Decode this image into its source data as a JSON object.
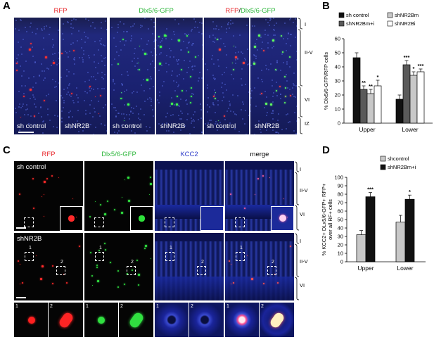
{
  "panels": {
    "A": {
      "label": "A",
      "titles": {
        "rfp": "RFP",
        "dlx": "Dlx5/6-GFP",
        "merge_rfp": "RFP",
        "merge_sep": "/",
        "merge_dlx": "Dlx5/6-GFP"
      },
      "conditions": [
        "sh control",
        "shNR2B"
      ],
      "layers": [
        "I",
        "II-V",
        "VI",
        "IZ"
      ]
    },
    "B": {
      "label": "B"
    },
    "C": {
      "label": "C",
      "titles": {
        "rfp": "RFP",
        "dlx": "Dlx5/6-GFP",
        "kcc2": "KCC2",
        "merge": "merge"
      },
      "conditions": [
        "sh control",
        "shNR2B"
      ],
      "layers": [
        "I",
        "II-V",
        "VI"
      ],
      "box_numbers": [
        "1",
        "2"
      ]
    },
    "D": {
      "label": "D"
    }
  },
  "colors": {
    "red": "#e8262a",
    "green": "#2eb73c",
    "blue": "#2b39c9"
  },
  "chart_data": [
    {
      "type": "bar",
      "panel": "B",
      "ylabel": "% Dlx5/6-GFP/RFP cells",
      "ylim": [
        0,
        60
      ],
      "yticks": [
        0,
        10,
        20,
        30,
        40,
        50,
        60
      ],
      "categories": [
        "Upper",
        "Lower"
      ],
      "legend": [
        "sh control",
        "shNR2Bm+i",
        "shNR2Bm",
        "shNR2Bi"
      ],
      "series": [
        {
          "name": "sh control",
          "color": "#111111",
          "values": [
            46.5,
            17
          ],
          "errors": [
            3.5,
            3
          ],
          "sig": [
            "",
            ""
          ]
        },
        {
          "name": "shNR2Bm+i",
          "color": "#5a5a5a",
          "values": [
            24,
            41.5
          ],
          "errors": [
            2.5,
            3
          ],
          "sig": [
            "**",
            "***"
          ]
        },
        {
          "name": "shNR2Bm",
          "color": "#c8c8c8",
          "values": [
            21,
            34
          ],
          "errors": [
            3,
            2.5
          ],
          "sig": [
            "**",
            "*"
          ]
        },
        {
          "name": "shNR2Bi",
          "color": "#ffffff",
          "values": [
            26.5,
            36.5
          ],
          "errors": [
            4,
            2
          ],
          "sig": [
            "*",
            "***"
          ]
        }
      ]
    },
    {
      "type": "bar",
      "panel": "D",
      "ylabel_lines": [
        "% KCC2+ DLx5/6-GFP+ RFP+",
        "over all RF+ cells"
      ],
      "ylim": [
        0,
        100
      ],
      "yticks": [
        0,
        10,
        20,
        30,
        40,
        50,
        60,
        70,
        80,
        90,
        100
      ],
      "categories": [
        "Upper",
        "Lower"
      ],
      "legend": [
        "shcontrol",
        "shNR2Bm+i"
      ],
      "series": [
        {
          "name": "shcontrol",
          "color": "#c8c8c8",
          "values": [
            32,
            47
          ],
          "errors": [
            5,
            8
          ],
          "sig": [
            "",
            ""
          ]
        },
        {
          "name": "shNR2Bm+i",
          "color": "#111111",
          "values": [
            77,
            74
          ],
          "errors": [
            5,
            5
          ],
          "sig": [
            "***",
            "*"
          ]
        }
      ]
    }
  ]
}
